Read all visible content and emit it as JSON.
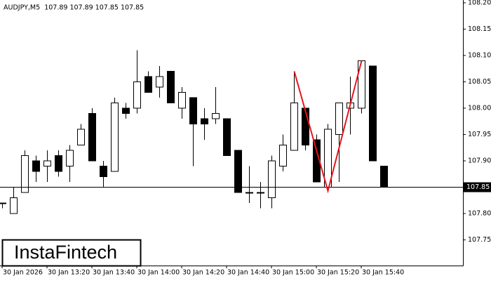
{
  "chart_data": {
    "type": "candlestick",
    "title": "AUDJPY,M5  107.89 107.89 107.85 107.85",
    "categories": [
      "30 Jan 2026",
      null,
      null,
      null,
      "30 Jan 13:20",
      null,
      null,
      null,
      "30 Jan 13:40",
      null,
      null,
      null,
      "30 Jan 14:00",
      null,
      null,
      null,
      "30 Jan 14:20",
      null,
      null,
      null,
      "30 Jan 14:40",
      null,
      null,
      null,
      "30 Jan 15:00",
      null,
      null,
      null,
      "30 Jan 15:20",
      null,
      null,
      null,
      "30 Jan 15:40",
      null,
      null
    ],
    "open": [
      107.82,
      107.8,
      107.84,
      107.9,
      107.89,
      107.91,
      107.89,
      107.93,
      107.99,
      107.89,
      107.88,
      108.0,
      108.0,
      108.06,
      108.04,
      108.07,
      108.0,
      108.02,
      107.98,
      107.98,
      107.98,
      107.92,
      107.84,
      107.84,
      107.83,
      107.89,
      107.92,
      108.0,
      107.94,
      107.85,
      107.95,
      108.0,
      108.0,
      108.08,
      107.89
    ],
    "high": [
      107.82,
      107.85,
      107.92,
      107.91,
      107.92,
      107.92,
      107.93,
      107.97,
      108.0,
      107.9,
      108.02,
      108.01,
      108.11,
      108.07,
      108.08,
      108.07,
      108.04,
      108.02,
      108.0,
      108.04,
      107.98,
      107.92,
      107.89,
      107.86,
      107.91,
      107.95,
      108.07,
      108.0,
      107.95,
      107.97,
      108.01,
      108.06,
      108.09,
      108.08,
      107.89
    ],
    "low": [
      107.81,
      107.8,
      107.84,
      107.86,
      107.86,
      107.87,
      107.86,
      107.93,
      107.9,
      107.85,
      107.88,
      107.98,
      107.99,
      108.03,
      108.02,
      108.01,
      107.98,
      107.89,
      107.94,
      107.97,
      107.91,
      107.84,
      107.82,
      107.81,
      107.81,
      107.88,
      107.92,
      107.92,
      107.86,
      107.84,
      107.86,
      107.95,
      107.99,
      107.9,
      107.85
    ],
    "close": [
      107.82,
      107.83,
      107.91,
      107.88,
      107.9,
      107.88,
      107.92,
      107.96,
      107.9,
      107.87,
      108.01,
      107.99,
      108.05,
      108.03,
      108.06,
      108.01,
      108.03,
      107.97,
      107.97,
      107.99,
      107.91,
      107.84,
      107.84,
      107.84,
      107.9,
      107.93,
      108.01,
      107.93,
      107.86,
      107.96,
      108.01,
      108.01,
      108.09,
      107.9,
      107.85
    ],
    "up_color": "#ffffff",
    "down_color": "#000000",
    "ylim": [
      107.7013,
      108.2053
    ],
    "yticks": [
      107.75,
      {
        "value": 107.8,
        "label": "107.80"
      },
      107.85,
      {
        "value": 107.9,
        "label": "107.90"
      },
      107.95,
      {
        "value": 108.0,
        "label": "108.00"
      },
      108.05,
      {
        "value": 108.1,
        "label": "108.10"
      },
      108.15,
      {
        "value": 108.2,
        "label": "108.20"
      }
    ],
    "last_price": 107.85,
    "pattern": {
      "color": "#e8141c",
      "category_index": [
        26,
        29,
        32
      ],
      "values": [
        108.07,
        107.843,
        108.09
      ]
    },
    "logo": "InstaFintech"
  }
}
